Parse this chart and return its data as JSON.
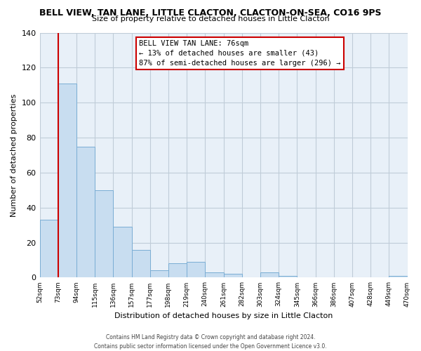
{
  "title": "BELL VIEW, TAN LANE, LITTLE CLACTON, CLACTON-ON-SEA, CO16 9PS",
  "subtitle": "Size of property relative to detached houses in Little Clacton",
  "xlabel": "Distribution of detached houses by size in Little Clacton",
  "ylabel": "Number of detached properties",
  "bin_labels": [
    "52sqm",
    "73sqm",
    "94sqm",
    "115sqm",
    "136sqm",
    "157sqm",
    "177sqm",
    "198sqm",
    "219sqm",
    "240sqm",
    "261sqm",
    "282sqm",
    "303sqm",
    "324sqm",
    "345sqm",
    "366sqm",
    "386sqm",
    "407sqm",
    "428sqm",
    "449sqm",
    "470sqm"
  ],
  "bar_values": [
    33,
    111,
    75,
    50,
    29,
    16,
    4,
    8,
    9,
    3,
    2,
    0,
    3,
    1,
    0,
    0,
    0,
    0,
    0,
    1
  ],
  "bar_color": "#c8ddf0",
  "bar_edge_color": "#7aadd4",
  "vline_color": "#cc0000",
  "vline_pos": 1,
  "ylim": [
    0,
    140
  ],
  "yticks": [
    0,
    20,
    40,
    60,
    80,
    100,
    120,
    140
  ],
  "annotation_title": "BELL VIEW TAN LANE: 76sqm",
  "annotation_line1": "← 13% of detached houses are smaller (43)",
  "annotation_line2": "87% of semi-detached houses are larger (296) →",
  "annotation_box_color": "#ffffff",
  "annotation_box_edge": "#cc0000",
  "footer_line1": "Contains HM Land Registry data © Crown copyright and database right 2024.",
  "footer_line2": "Contains public sector information licensed under the Open Government Licence v3.0.",
  "background_color": "#ffffff",
  "plot_bg_color": "#e8f0f8",
  "grid_color": "#c0ccd8"
}
